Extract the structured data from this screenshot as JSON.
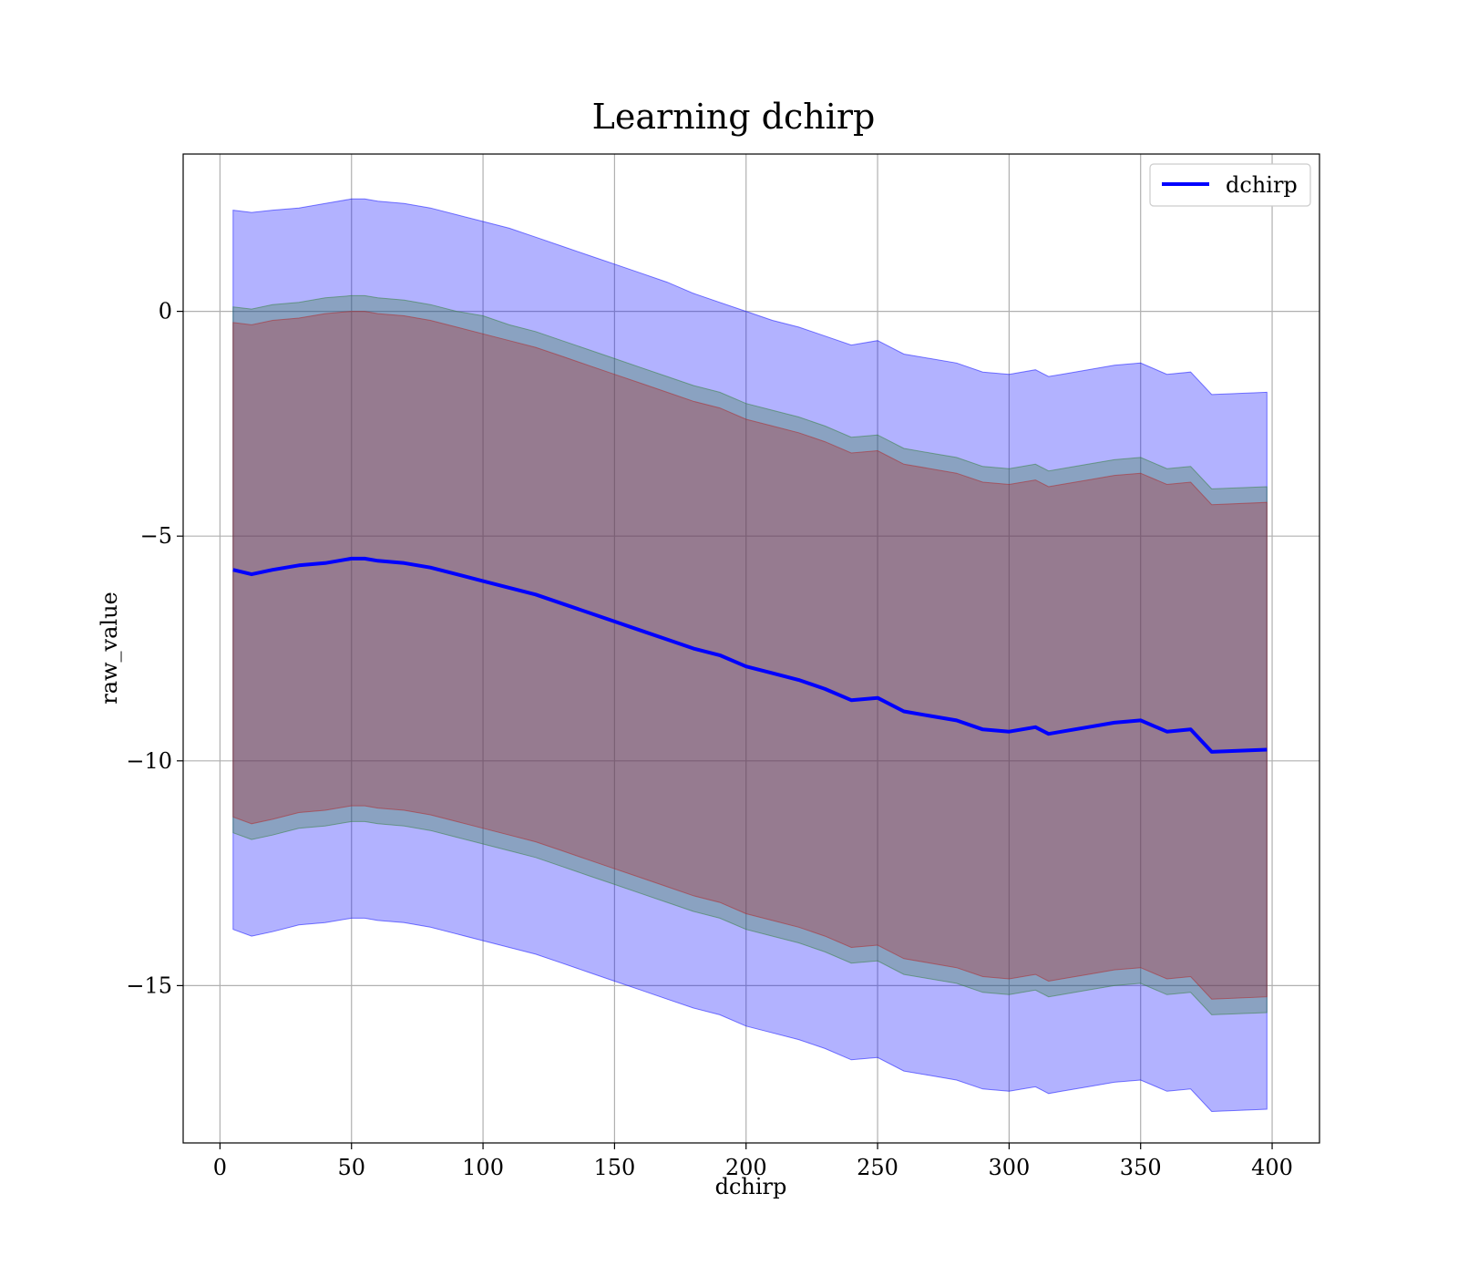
{
  "chart_data": {
    "type": "area",
    "title": "Learning dchirp",
    "xlabel": "dchirp",
    "ylabel": "raw_value",
    "xlim": [
      -14,
      418
    ],
    "ylim": [
      -18.5,
      3.5
    ],
    "grid": true,
    "legend_position": "top-right",
    "x_ticks": [
      {
        "value": 0,
        "label": "0"
      },
      {
        "value": 50,
        "label": "50"
      },
      {
        "value": 100,
        "label": "100"
      },
      {
        "value": 150,
        "label": "150"
      },
      {
        "value": 200,
        "label": "200"
      },
      {
        "value": 250,
        "label": "250"
      },
      {
        "value": 300,
        "label": "300"
      },
      {
        "value": 350,
        "label": "350"
      },
      {
        "value": 400,
        "label": "400"
      }
    ],
    "y_ticks": [
      {
        "value": 0,
        "label": "0"
      },
      {
        "value": -5,
        "label": "−5"
      },
      {
        "value": -10,
        "label": "−10"
      },
      {
        "value": -15,
        "label": "−15"
      }
    ],
    "x": [
      5,
      12,
      20,
      30,
      40,
      50,
      55,
      60,
      70,
      80,
      90,
      100,
      110,
      120,
      130,
      140,
      150,
      160,
      170,
      180,
      190,
      200,
      210,
      220,
      230,
      240,
      250,
      260,
      270,
      280,
      290,
      300,
      310,
      315,
      320,
      330,
      340,
      350,
      360,
      369,
      377,
      398
    ],
    "series": [
      {
        "name": "dchirp",
        "color": "#0000ff",
        "values": [
          -5.75,
          -5.85,
          -5.75,
          -5.65,
          -5.6,
          -5.5,
          -5.5,
          -5.55,
          -5.6,
          -5.7,
          -5.85,
          -6.0,
          -6.15,
          -6.3,
          -6.5,
          -6.7,
          -6.9,
          -7.1,
          -7.3,
          -7.5,
          -7.65,
          -7.9,
          -8.05,
          -8.2,
          -8.4,
          -8.65,
          -8.6,
          -8.9,
          -9.0,
          -9.1,
          -9.3,
          -9.35,
          -9.25,
          -9.4,
          -9.35,
          -9.25,
          -9.15,
          -9.1,
          -9.35,
          -9.3,
          -9.8,
          -9.75
        ]
      }
    ],
    "bands": [
      {
        "color": "#0000ff",
        "upper": [
          2.25,
          2.2,
          2.25,
          2.3,
          2.4,
          2.5,
          2.5,
          2.45,
          2.4,
          2.3,
          2.15,
          2.0,
          1.85,
          1.65,
          1.45,
          1.25,
          1.05,
          0.85,
          0.65,
          0.4,
          0.2,
          0.0,
          -0.2,
          -0.35,
          -0.55,
          -0.75,
          -0.65,
          -0.95,
          -1.05,
          -1.15,
          -1.35,
          -1.4,
          -1.3,
          -1.45,
          -1.4,
          -1.3,
          -1.2,
          -1.15,
          -1.4,
          -1.35,
          -1.85,
          -1.8
        ],
        "lower": [
          -13.75,
          -13.9,
          -13.8,
          -13.65,
          -13.6,
          -13.5,
          -13.5,
          -13.55,
          -13.6,
          -13.7,
          -13.85,
          -14.0,
          -14.15,
          -14.3,
          -14.5,
          -14.7,
          -14.9,
          -15.1,
          -15.3,
          -15.5,
          -15.65,
          -15.9,
          -16.05,
          -16.2,
          -16.4,
          -16.65,
          -16.6,
          -16.9,
          -17.0,
          -17.1,
          -17.3,
          -17.35,
          -17.25,
          -17.4,
          -17.35,
          -17.25,
          -17.15,
          -17.1,
          -17.35,
          -17.3,
          -17.8,
          -17.75
        ]
      },
      {
        "color": "#2e7d32",
        "upper": [
          0.1,
          0.05,
          0.15,
          0.2,
          0.3,
          0.35,
          0.35,
          0.3,
          0.25,
          0.15,
          0.0,
          -0.1,
          -0.3,
          -0.45,
          -0.65,
          -0.85,
          -1.05,
          -1.25,
          -1.45,
          -1.65,
          -1.8,
          -2.05,
          -2.2,
          -2.35,
          -2.55,
          -2.8,
          -2.75,
          -3.05,
          -3.15,
          -3.25,
          -3.45,
          -3.5,
          -3.4,
          -3.55,
          -3.5,
          -3.4,
          -3.3,
          -3.25,
          -3.5,
          -3.45,
          -3.95,
          -3.9
        ],
        "lower": [
          -11.6,
          -11.75,
          -11.65,
          -11.5,
          -11.45,
          -11.35,
          -11.35,
          -11.4,
          -11.45,
          -11.55,
          -11.7,
          -11.85,
          -12.0,
          -12.15,
          -12.35,
          -12.55,
          -12.75,
          -12.95,
          -13.15,
          -13.35,
          -13.5,
          -13.75,
          -13.9,
          -14.05,
          -14.25,
          -14.5,
          -14.45,
          -14.75,
          -14.85,
          -14.95,
          -15.15,
          -15.2,
          -15.1,
          -15.25,
          -15.2,
          -15.1,
          -15.0,
          -14.95,
          -15.2,
          -15.15,
          -15.65,
          -15.6
        ]
      },
      {
        "color": "#b22222",
        "upper": [
          -0.25,
          -0.3,
          -0.2,
          -0.15,
          -0.05,
          0.0,
          0.0,
          -0.05,
          -0.1,
          -0.2,
          -0.35,
          -0.5,
          -0.65,
          -0.8,
          -1.0,
          -1.2,
          -1.4,
          -1.6,
          -1.8,
          -2.0,
          -2.15,
          -2.4,
          -2.55,
          -2.7,
          -2.9,
          -3.15,
          -3.1,
          -3.4,
          -3.5,
          -3.6,
          -3.8,
          -3.85,
          -3.75,
          -3.9,
          -3.85,
          -3.75,
          -3.65,
          -3.6,
          -3.85,
          -3.8,
          -4.3,
          -4.25
        ],
        "lower": [
          -11.25,
          -11.4,
          -11.3,
          -11.15,
          -11.1,
          -11.0,
          -11.0,
          -11.05,
          -11.1,
          -11.2,
          -11.35,
          -11.5,
          -11.65,
          -11.8,
          -12.0,
          -12.2,
          -12.4,
          -12.6,
          -12.8,
          -13.0,
          -13.15,
          -13.4,
          -13.55,
          -13.7,
          -13.9,
          -14.15,
          -14.1,
          -14.4,
          -14.5,
          -14.6,
          -14.8,
          -14.85,
          -14.75,
          -14.9,
          -14.85,
          -14.75,
          -14.65,
          -14.6,
          -14.85,
          -14.8,
          -15.3,
          -15.25
        ]
      }
    ],
    "legend": [
      {
        "label": "dchirp",
        "color": "#0000ff"
      }
    ]
  }
}
